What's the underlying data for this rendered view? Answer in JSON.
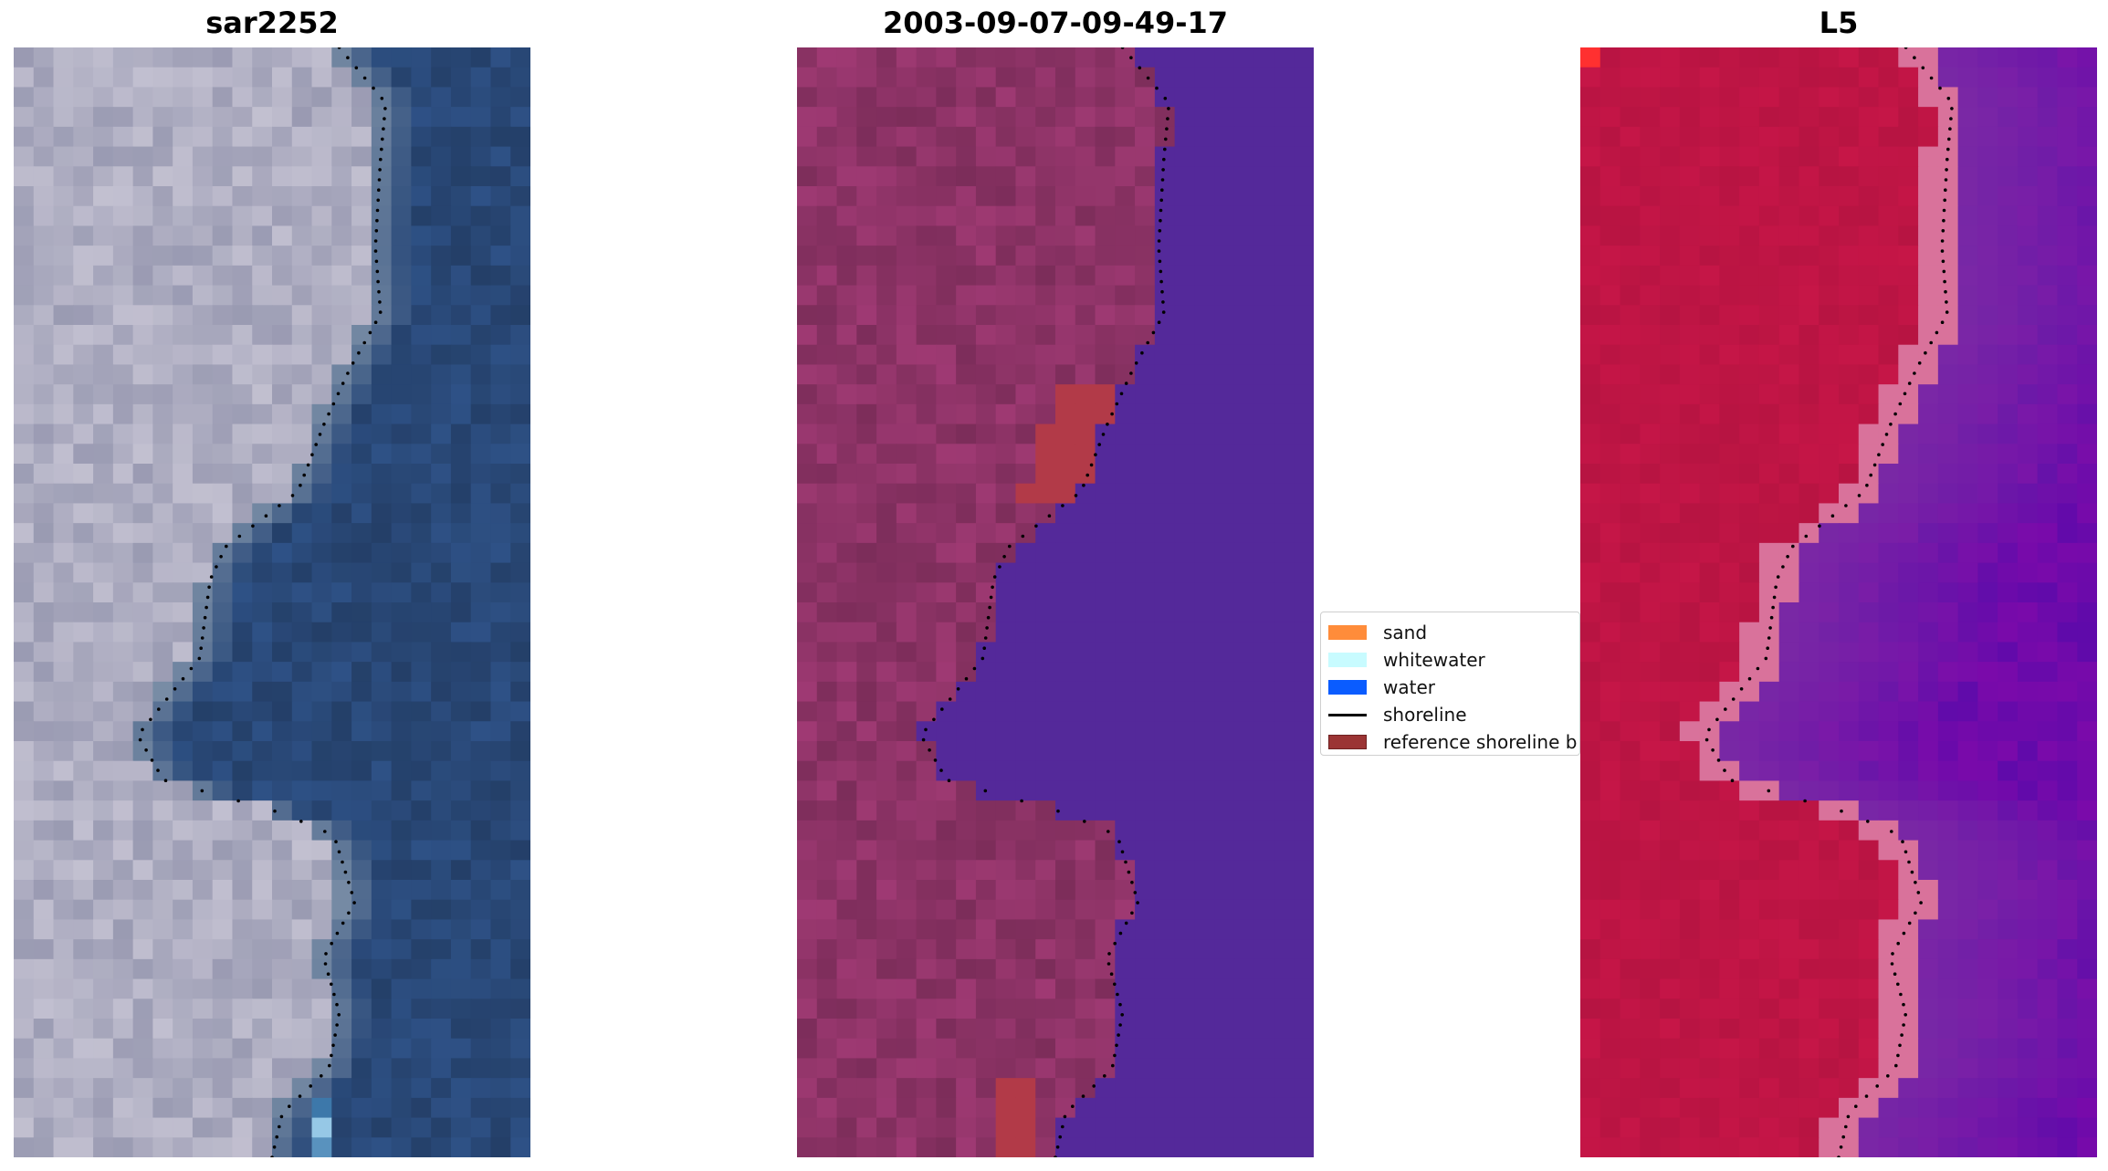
{
  "panels": [
    {
      "title": "sar2252"
    },
    {
      "title": "2003-09-07-09-49-17"
    },
    {
      "title": "L5"
    }
  ],
  "legend": {
    "items": [
      {
        "label": "sand",
        "color": "#ff8c3a",
        "kind": "patch"
      },
      {
        "label": "whitewater",
        "color": "#c8fbff",
        "kind": "patch"
      },
      {
        "label": "water",
        "color": "#0a5cff",
        "kind": "patch"
      },
      {
        "label": "shoreline",
        "color": "#000000",
        "kind": "line"
      },
      {
        "label": "reference shoreline b",
        "color": "#9b3434",
        "kind": "patch"
      }
    ]
  },
  "colors": {
    "rgb_land": "#8c8ea8",
    "rgb_water": "#2a4a7a",
    "class_land": "#8a3264",
    "class_water": "#54299a",
    "class_buffer": "#b23a48",
    "mndwi_land": "#c01545",
    "mndwi_water": "#7a2aa5",
    "mndwi_edge": "#d9729b"
  }
}
